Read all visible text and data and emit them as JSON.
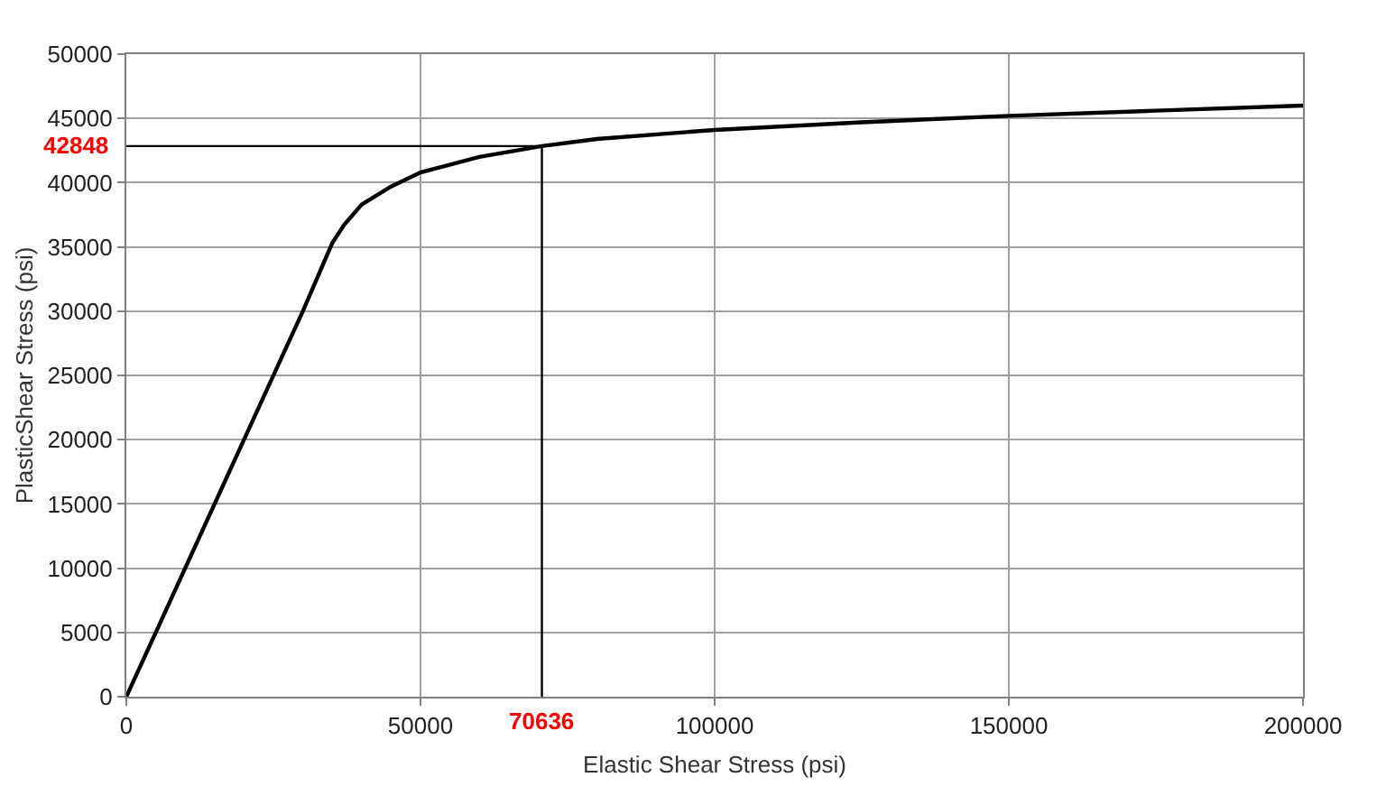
{
  "chart_data": {
    "type": "line",
    "xlabel": "Elastic Shear Stress (psi)",
    "ylabel": "PlasticShear Stress (psi)",
    "x": [
      0,
      5000,
      10000,
      20000,
      30000,
      35000,
      37000,
      40000,
      45000,
      50000,
      60000,
      70636,
      80000,
      100000,
      125000,
      150000,
      175000,
      200000
    ],
    "series": [
      {
        "color": "#000000",
        "values": [
          0,
          5000,
          10000,
          20000,
          30000,
          35300,
          36700,
          38300,
          39700,
          40800,
          42000,
          42848,
          43400,
          44100,
          44700,
          45200,
          45600,
          46000
        ]
      }
    ],
    "xlim": [
      0,
      200000
    ],
    "xticks": [
      0,
      50000,
      100000,
      150000,
      200000
    ],
    "ylim": [
      0,
      50000
    ],
    "yticks": [
      0,
      5000,
      10000,
      15000,
      20000,
      25000,
      30000,
      35000,
      40000,
      45000,
      50000
    ],
    "grid": true,
    "marker": "none",
    "line_style": "solid",
    "ref_lines": [
      {
        "axis": "x",
        "value": 70636,
        "label": "70636",
        "color": "#000000"
      },
      {
        "axis": "y",
        "value": 42848,
        "label": "42848",
        "color": "#000000"
      }
    ]
  }
}
